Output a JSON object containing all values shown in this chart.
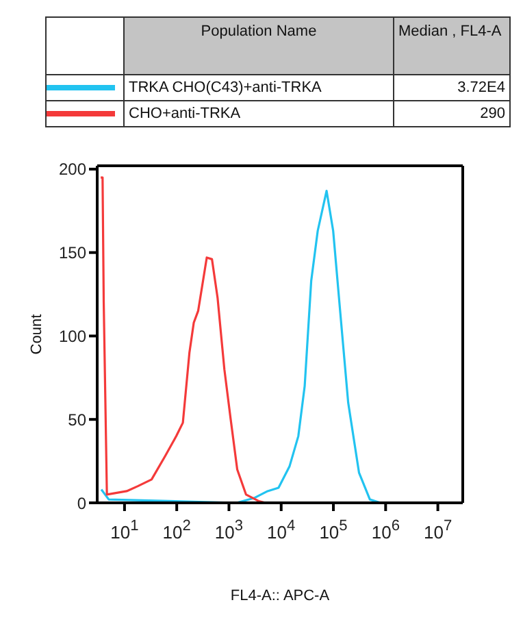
{
  "chart_data": {
    "type": "line",
    "xlabel": "FL4-A:: APC-A",
    "ylabel": "Count",
    "legend_title": "Population Name",
    "legend": "top",
    "log": "x",
    "grid": false,
    "marker": "none",
    "line_style": "solid",
    "annotations": [
      "Median , FL4-A",
      "3.72E4",
      "290"
    ],
    "xlim": [
      3,
      30000000
    ],
    "xticks": [
      {
        "value": 10,
        "label": "10$^{1}$"
      },
      {
        "value": 100,
        "label": "10$^{2}$"
      },
      {
        "value": 1000,
        "label": "10$^{3}$"
      },
      {
        "value": 10000,
        "label": "10$^{4}$"
      },
      {
        "value": 100000,
        "label": "10$^{5}$"
      },
      {
        "value": 1000000,
        "label": "10$^{6}$"
      },
      {
        "value": 10000000,
        "label": "10$^{7}$"
      }
    ],
    "ylim": [
      0,
      202
    ],
    "yticks": [
      0,
      50,
      100,
      150,
      200
    ],
    "series": [
      {
        "name": "TRKA CHO(C43)+anti-TRKA",
        "color": "#22c3f0",
        "x": [
          3.6,
          5,
          1400,
          3100,
          5500,
          8900,
          14500,
          21300,
          28200,
          37600,
          50100,
          74000,
          99000,
          132000,
          192000,
          310000,
          500000,
          800000,
          30000000
        ],
        "values": [
          8,
          2,
          0,
          3,
          7,
          9,
          22,
          40,
          70,
          133,
          163,
          187,
          163,
          118,
          60,
          18,
          2,
          0,
          0
        ]
      },
      {
        "name": "CHO+anti-TRKA",
        "color": "#f43a3a",
        "x": [
          3.5,
          3.8,
          4,
          4.6,
          11,
          18,
          33,
          60,
          98,
          131,
          175,
          212,
          257,
          376,
          473,
          605,
          817,
          1080,
          1440,
          2120,
          3750,
          5000,
          440000
        ],
        "values": [
          195,
          195,
          120,
          5,
          7,
          10,
          14,
          28,
          40,
          48,
          90,
          108,
          115,
          147,
          146,
          123,
          80,
          50,
          20,
          5,
          1,
          0,
          0
        ]
      }
    ]
  }
}
